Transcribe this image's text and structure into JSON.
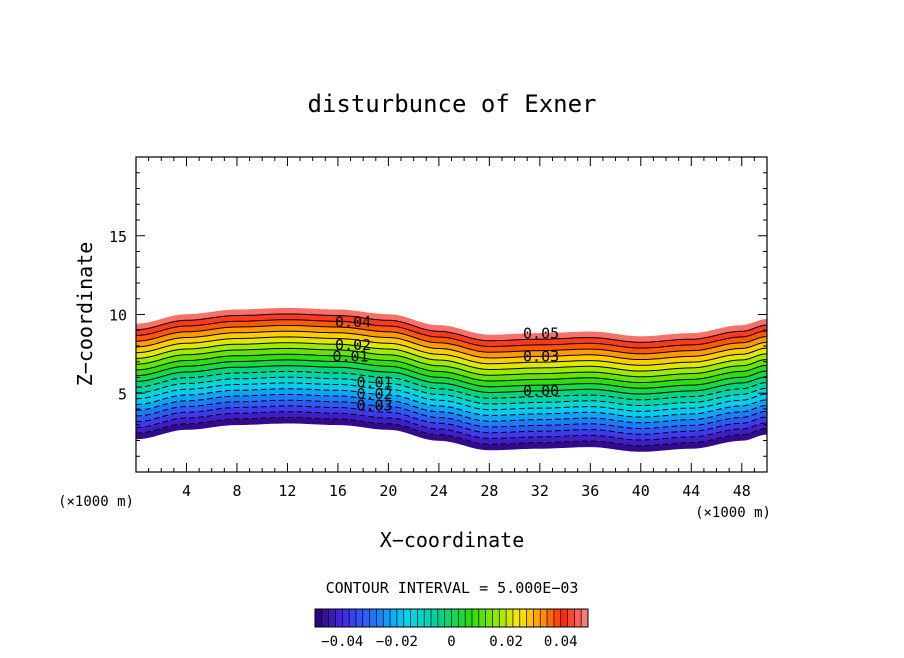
{
  "chart_data": {
    "type": "contour",
    "title": "disturbunce of Exner",
    "xlabel": "X−coordinate",
    "ylabel": "Z−coordinate",
    "x_unit_left": "(×1000 m)",
    "x_unit_right": "(×1000 m)",
    "xlim": [
      0,
      50
    ],
    "ylim": [
      0,
      20
    ],
    "x_ticks": [
      4,
      8,
      12,
      16,
      20,
      24,
      28,
      32,
      36,
      40,
      44,
      48
    ],
    "y_ticks": [
      5,
      10,
      15
    ],
    "terrain": {
      "x": [
        0,
        4,
        8,
        12,
        16,
        20,
        24,
        28,
        32,
        36,
        40,
        44,
        48,
        50
      ],
      "z": [
        2.1,
        2.7,
        3.0,
        3.1,
        3.0,
        2.7,
        2.0,
        1.4,
        1.5,
        1.6,
        1.3,
        1.5,
        2.0,
        2.4
      ]
    },
    "field_depth_top": 7.3,
    "levels": {
      "min": -0.05,
      "max": 0.05,
      "step": 0.005
    },
    "contour_labels": [
      {
        "text": "0.04",
        "x": 17.2
      },
      {
        "text": "0.02",
        "x": 17.2
      },
      {
        "text": "0.01",
        "x": 17.0
      },
      {
        "text": "0.01",
        "x": 18.9
      },
      {
        "text": "0.02",
        "x": 18.9
      },
      {
        "text": "0.03",
        "x": 18.9
      },
      {
        "text": "0.03",
        "x": 18.9
      },
      {
        "text": "0.05",
        "x": 32.1
      },
      {
        "text": "0.03",
        "x": 32.1
      },
      {
        "text": "0.00",
        "x": 32.1
      }
    ],
    "contour_interval_text": "CONTOUR INTERVAL = 5.000E−03",
    "colorbar": {
      "min": -0.05,
      "max": 0.05,
      "tick_labels": [
        "−0.04",
        "−0.02",
        "0",
        "0.02",
        "0.04"
      ],
      "tick_values": [
        -0.04,
        -0.02,
        0,
        0.02,
        0.04
      ]
    }
  }
}
